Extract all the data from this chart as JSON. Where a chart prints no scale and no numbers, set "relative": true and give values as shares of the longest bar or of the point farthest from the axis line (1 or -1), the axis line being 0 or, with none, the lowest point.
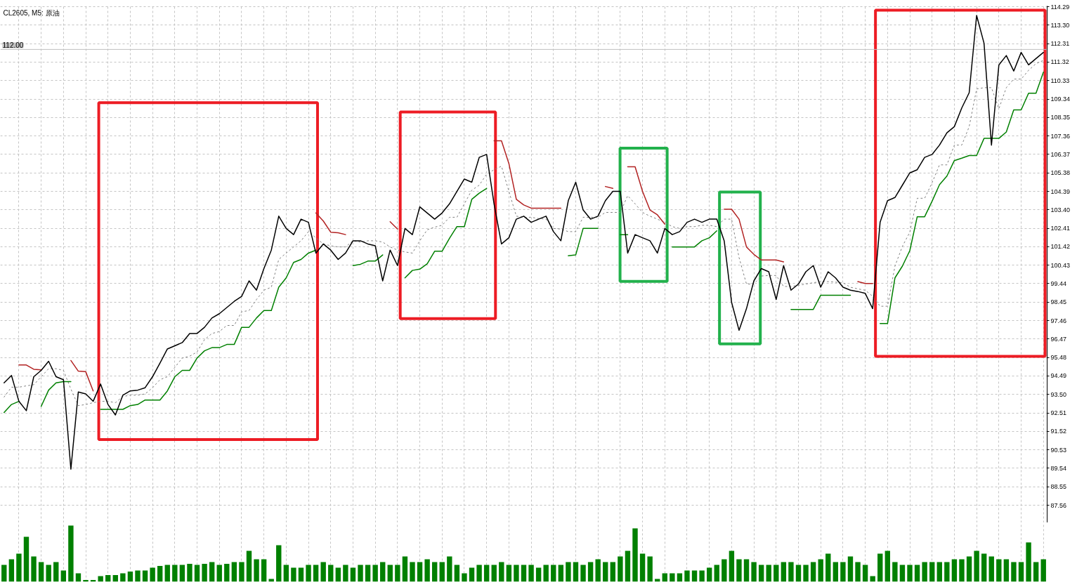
{
  "chart_data": [
    {
      "type": "line",
      "title": "CL2605, M5: 原油",
      "tick_labels": "y",
      "grid": true,
      "categories": [
        null,
        null,
        null,
        null,
        null,
        null,
        null,
        null,
        null,
        null,
        null,
        null,
        null,
        null,
        null,
        null,
        null,
        null,
        null,
        null,
        null,
        null,
        null,
        null,
        null,
        null,
        null,
        null,
        null,
        null,
        null,
        null,
        null,
        null,
        null,
        null,
        null,
        null,
        null,
        null,
        null,
        null,
        null,
        null,
        null,
        null,
        null,
        null,
        null,
        null,
        null,
        null,
        null,
        null,
        null,
        null,
        null,
        null,
        null,
        null,
        null,
        null,
        null,
        null,
        null,
        null,
        null,
        null,
        null,
        null,
        null,
        null,
        null,
        null,
        null,
        null,
        null,
        null,
        null,
        null,
        null,
        null,
        null,
        null,
        null,
        null,
        null,
        null,
        null,
        null,
        null,
        null,
        null,
        null,
        null,
        null,
        null,
        null,
        null,
        null,
        null,
        null,
        null,
        null,
        null,
        null,
        null,
        null,
        null,
        null,
        null,
        null,
        null,
        null,
        null,
        null,
        null,
        null,
        null,
        null,
        null,
        null,
        null,
        null,
        null,
        null,
        null,
        null,
        null,
        null,
        null,
        null,
        null,
        null,
        null,
        null,
        null,
        null,
        null,
        null,
        null
      ],
      "ylim": [
        86.62,
        114.33
      ],
      "yticks": [
        114.29,
        {
          "value": 113.3,
          "label": "113.30"
        },
        112.31,
        111.32,
        110.33,
        109.34,
        108.35,
        107.36,
        106.37,
        105.38,
        104.39,
        {
          "value": 103.4,
          "label": "103.40"
        },
        102.41,
        101.42,
        100.43,
        99.44,
        98.45,
        97.46,
        96.47,
        95.48,
        94.49,
        {
          "value": 93.5,
          "label": "93.50"
        },
        92.51,
        91.52,
        90.53,
        89.54,
        88.55,
        87.56
      ],
      "ref_lines": [
        {
          "axis": "y",
          "value": 112.0,
          "label": "112.00",
          "color": "#c0c0c0"
        }
      ],
      "series": [
        {
          "color": "#808080",
          "line_style": "dotted",
          "values": [
            93.36,
            93.89,
            93.89,
            93.96,
            94.02,
            94.45,
            94.88,
            94.88,
            94.79,
            93.79,
            92.9,
            92.96,
            93.06,
            93.13,
            93.13,
            93.06,
            93.39,
            93.46,
            93.46,
            93.53,
            93.86,
            94.29,
            94.45,
            94.95,
            95.45,
            95.55,
            95.78,
            96.44,
            96.77,
            96.87,
            97.2,
            97.2,
            97.93,
            98.0,
            98.59,
            99.09,
            99.25,
            100.74,
            101.08,
            101.41,
            101.74,
            102.23,
            101.9,
            101.57,
            101.47,
            101.41,
            101.41,
            101.74,
            101.67,
            101.74,
            101.74,
            101.67,
            101.41,
            101.24,
            101.14,
            101.08,
            101.74,
            102.33,
            102.47,
            102.57,
            103.0,
            103.0,
            103.72,
            104.45,
            104.72,
            105.31,
            105.55,
            105.74,
            104.39,
            103.06,
            103.0,
            103.0,
            102.93,
            102.9,
            102.4,
            102.37,
            102.23,
            102.23,
            103.0,
            103.0,
            103.0,
            103.26,
            103.26,
            103.26,
            104.16,
            103.72,
            103.26,
            103.06,
            102.9,
            102.73,
            102.5,
            102.4,
            102.5,
            102.5,
            102.57,
            102.57,
            102.5,
            102.9,
            102.9,
            100.84,
            99.42,
            99.42,
            99.85,
            99.88,
            99.88,
            99.29,
            99.29,
            99.35,
            99.42,
            99.49,
            99.55,
            99.55,
            99.52,
            99.49,
            99.25,
            99.16,
            99.09,
            98.76,
            98.23,
            98.23,
            100.38,
            101.44,
            102.2,
            104.02,
            104.02,
            104.85,
            105.81,
            105.81,
            106.87,
            106.87,
            107.86,
            109.88,
            109.95,
            109.95,
            108.82,
            109.95,
            110.41,
            110.41,
            110.88,
            111.24,
            111.41
          ]
        },
        {
          "color": "#b22222",
          "values": [
            null,
            null,
            95.08,
            95.08,
            94.85,
            94.82,
            null,
            null,
            null,
            95.32,
            94.75,
            94.72,
            93.69,
            null,
            null,
            null,
            null,
            null,
            null,
            null,
            null,
            null,
            null,
            null,
            null,
            null,
            null,
            null,
            null,
            null,
            null,
            null,
            null,
            null,
            null,
            null,
            null,
            null,
            null,
            null,
            null,
            null,
            103.23,
            102.8,
            102.2,
            102.17,
            102.07,
            null,
            null,
            null,
            null,
            null,
            102.76,
            102.37,
            null,
            null,
            null,
            null,
            null,
            null,
            null,
            null,
            null,
            null,
            null,
            null,
            107.1,
            107.1,
            105.88,
            103.96,
            103.66,
            103.49,
            103.49,
            103.49,
            103.49,
            103.49,
            null,
            null,
            null,
            null,
            null,
            104.65,
            104.55,
            null,
            105.71,
            105.71,
            104.39,
            103.39,
            103.13,
            102.63,
            null,
            null,
            null,
            null,
            null,
            null,
            null,
            103.43,
            103.43,
            102.9,
            101.41,
            101.01,
            100.71,
            100.71,
            100.71,
            100.61,
            null,
            null,
            null,
            null,
            null,
            null,
            null,
            null,
            null,
            99.55,
            99.45,
            99.45,
            null,
            null,
            null,
            null,
            null,
            null,
            null,
            null,
            null,
            null,
            null,
            null,
            null,
            null,
            null,
            null,
            null,
            null,
            null,
            null,
            null,
            null,
            null
          ]
        },
        {
          "color": "#008000",
          "values": [
            92.53,
            92.96,
            93.13,
            null,
            null,
            92.86,
            93.73,
            94.12,
            94.19,
            94.19,
            null,
            null,
            null,
            92.7,
            92.7,
            92.7,
            92.7,
            92.9,
            92.96,
            93.2,
            93.2,
            93.2,
            93.69,
            94.45,
            94.79,
            94.79,
            95.45,
            95.84,
            96.01,
            96.01,
            96.18,
            96.18,
            97.1,
            97.1,
            97.6,
            98.0,
            98.0,
            99.25,
            99.75,
            100.58,
            100.74,
            101.08,
            101.24,
            null,
            null,
            null,
            null,
            100.41,
            100.48,
            100.65,
            100.65,
            100.98,
            null,
            null,
            99.75,
            100.15,
            100.22,
            100.51,
            101.18,
            101.18,
            101.87,
            102.5,
            102.5,
            103.96,
            104.29,
            104.55,
            null,
            null,
            null,
            null,
            null,
            null,
            null,
            null,
            null,
            null,
            100.94,
            100.98,
            102.4,
            102.4,
            102.4,
            null,
            null,
            102.07,
            102.07,
            null,
            null,
            null,
            null,
            null,
            101.41,
            101.41,
            101.41,
            101.41,
            101.74,
            101.9,
            102.27,
            null,
            null,
            null,
            null,
            null,
            null,
            null,
            null,
            null,
            98.06,
            98.06,
            98.06,
            98.06,
            98.82,
            98.82,
            98.82,
            98.82,
            98.82,
            null,
            null,
            null,
            97.3,
            97.3,
            99.75,
            100.38,
            101.21,
            103.03,
            103.03,
            103.86,
            104.75,
            105.21,
            106.04,
            106.17,
            106.31,
            106.31,
            107.23,
            107.23,
            107.23,
            107.57,
            108.76,
            108.76,
            109.65,
            109.65,
            110.78
          ]
        },
        {
          "color": "#000000",
          "values": [
            94.12,
            94.52,
            93.13,
            92.63,
            94.45,
            94.79,
            95.28,
            94.45,
            94.29,
            89.49,
            93.63,
            93.53,
            93.13,
            94.06,
            92.96,
            92.4,
            93.46,
            93.69,
            93.73,
            93.86,
            94.45,
            95.18,
            95.94,
            96.11,
            96.28,
            96.77,
            96.77,
            97.1,
            97.6,
            97.83,
            98.16,
            98.49,
            98.76,
            99.59,
            99.09,
            100.25,
            101.24,
            103.06,
            102.4,
            102.07,
            102.9,
            102.73,
            101.08,
            101.57,
            101.24,
            100.74,
            101.08,
            101.74,
            101.74,
            101.57,
            101.47,
            99.59,
            101.24,
            100.41,
            102.4,
            102.07,
            103.56,
            103.23,
            102.9,
            103.23,
            103.72,
            104.39,
            105.05,
            104.88,
            106.21,
            106.37,
            103.72,
            101.57,
            101.9,
            102.9,
            103.06,
            102.73,
            102.9,
            103.06,
            102.23,
            101.74,
            103.89,
            104.88,
            103.39,
            102.9,
            103.06,
            103.89,
            104.39,
            104.39,
            101.08,
            102.07,
            101.9,
            101.74,
            101.08,
            102.4,
            102.07,
            102.23,
            102.73,
            102.9,
            102.73,
            102.9,
            102.9,
            101.74,
            98.43,
            96.94,
            98.1,
            99.59,
            100.25,
            100.08,
            98.59,
            100.41,
            99.09,
            99.42,
            100.08,
            100.41,
            99.25,
            100.08,
            99.75,
            99.25,
            99.09,
            99.02,
            98.92,
            98.1,
            102.73,
            103.89,
            104.06,
            104.72,
            105.38,
            105.55,
            106.21,
            106.37,
            106.87,
            107.53,
            107.86,
            108.86,
            109.68,
            113.82,
            112.33,
            106.87,
            111.17,
            111.67,
            110.84,
            111.84,
            111.17,
            111.51,
            111.84
          ]
        }
      ]
    },
    {
      "type": "bar",
      "relative": true,
      "tick_labels": false,
      "grid": "x",
      "color": "#008000",
      "categories": [
        null,
        null,
        null,
        null,
        null,
        null,
        null,
        null,
        null,
        null,
        null,
        null,
        null,
        null,
        null,
        null,
        null,
        null,
        null,
        null,
        null,
        null,
        null,
        null,
        null,
        null,
        null,
        null,
        null,
        null,
        null,
        null,
        null,
        null,
        null,
        null,
        null,
        null,
        null,
        null,
        null,
        null,
        null,
        null,
        null,
        null,
        null,
        null,
        null,
        null,
        null,
        null,
        null,
        null,
        null,
        null,
        null,
        null,
        null,
        null,
        null,
        null,
        null,
        null,
        null,
        null,
        null,
        null,
        null,
        null,
        null,
        null,
        null,
        null,
        null,
        null,
        null,
        null,
        null,
        null,
        null,
        null,
        null,
        null,
        null,
        null,
        null,
        null,
        null,
        null,
        null,
        null,
        null,
        null,
        null,
        null,
        null,
        null,
        null,
        null,
        null,
        null,
        null,
        null,
        null,
        null,
        null,
        null,
        null,
        null,
        null,
        null,
        null,
        null,
        null,
        null,
        null,
        null,
        null,
        null,
        null,
        null,
        null,
        null,
        null,
        null,
        null,
        null,
        null,
        null,
        null,
        null,
        null,
        null,
        null,
        null,
        null,
        null,
        null,
        null,
        null
      ],
      "values": [
        0.3,
        0.4,
        0.5,
        0.8,
        0.45,
        0.35,
        0.3,
        0.35,
        0.2,
        1,
        0.15,
        0.03,
        0.03,
        0.1,
        0.12,
        0.12,
        0.15,
        0.18,
        0.2,
        0.2,
        0.25,
        0.28,
        0.3,
        0.3,
        0.3,
        0.32,
        0.3,
        0.32,
        0.35,
        0.3,
        0.32,
        0.35,
        0.35,
        0.55,
        0.4,
        0.4,
        0.05,
        0.65,
        0.3,
        0.25,
        0.25,
        0.3,
        0.3,
        0.35,
        0.3,
        0.25,
        0.3,
        0.25,
        0.3,
        0.3,
        0.3,
        0.35,
        0.3,
        0.3,
        0.45,
        0.35,
        0.35,
        0.4,
        0.35,
        0.35,
        0.45,
        0.3,
        0.15,
        0.25,
        0.3,
        0.3,
        0.3,
        0.35,
        0.3,
        0.3,
        0.3,
        0.3,
        0.25,
        0.3,
        0.3,
        0.3,
        0.35,
        0.35,
        0.3,
        0.35,
        0.4,
        0.35,
        0.35,
        0.45,
        0.55,
        0.95,
        0.5,
        0.45,
        0.05,
        0.15,
        0.15,
        0.15,
        0.2,
        0.2,
        0.2,
        0.25,
        0.3,
        0.4,
        0.55,
        0.4,
        0.4,
        0.35,
        0.3,
        0.3,
        0.3,
        0.35,
        0.35,
        0.3,
        0.3,
        0.35,
        0.4,
        0.5,
        0.35,
        0.35,
        0.45,
        0.35,
        0.3,
        0.1,
        0.5,
        0.55,
        0.35,
        0.3,
        0.3,
        0.3,
        0.35,
        0.35,
        0.35,
        0.35,
        0.4,
        0.4,
        0.45,
        0.55,
        0.5,
        0.45,
        0.4,
        0.4,
        0.35,
        0.35,
        0.7,
        0.35,
        0.4
      ]
    }
  ]
}
